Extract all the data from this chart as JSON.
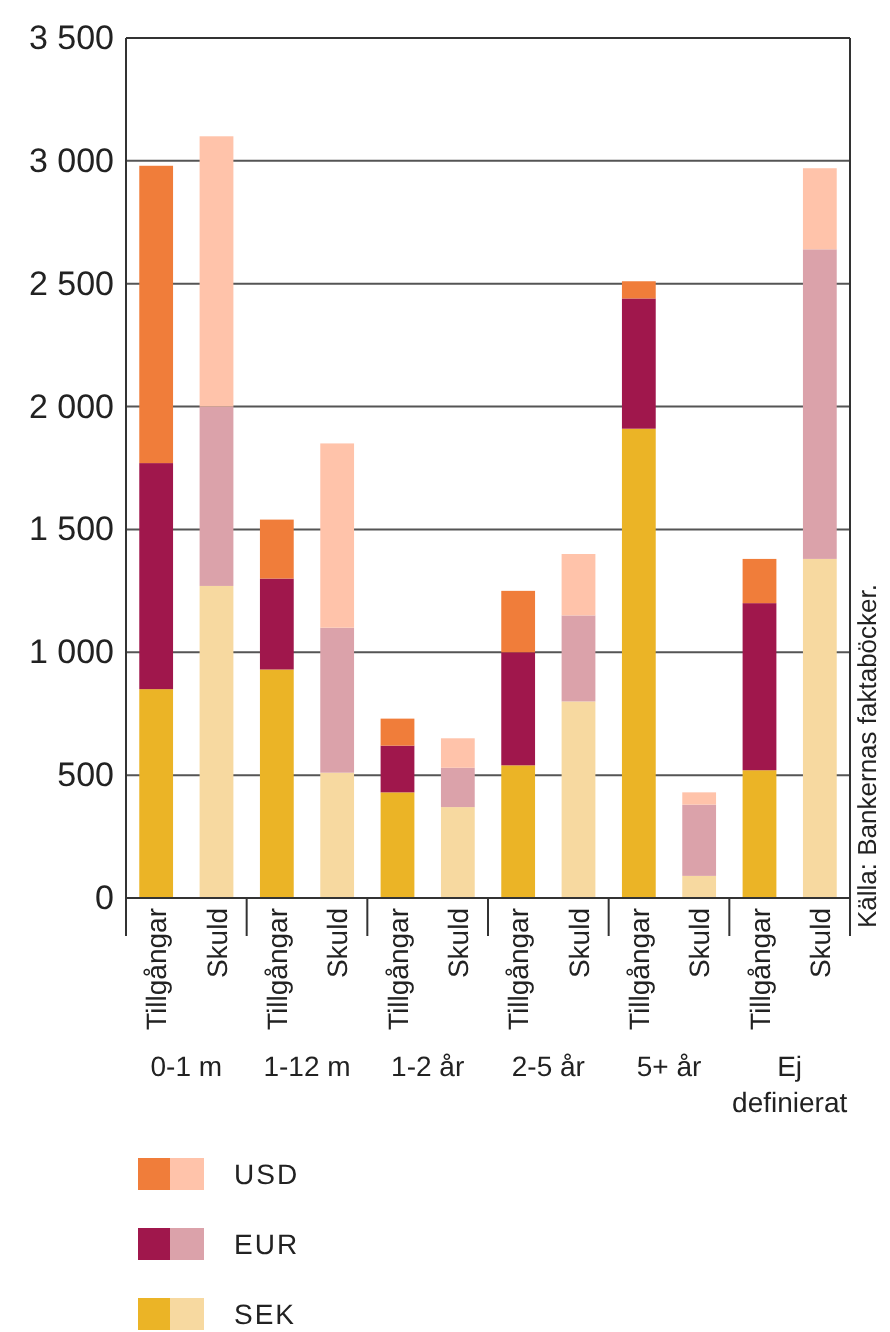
{
  "chart_data": {
    "type": "bar",
    "stacked": true,
    "categories": [
      "Tillgångar",
      "Skuld",
      "Tillgångar",
      "Skuld",
      "Tillgångar",
      "Skuld",
      "Tillgångar",
      "Skuld",
      "Tillgångar",
      "Skuld",
      "Tillgångar",
      "Skuld"
    ],
    "series": [
      {
        "name": "SEK",
        "colors": [
          "#ebb426",
          "#f7d9a0",
          "#ebb426",
          "#f7d9a0",
          "#ebb426",
          "#f7d9a0",
          "#ebb426",
          "#f7d9a0",
          "#ebb426",
          "#f7d9a0",
          "#ebb426",
          "#f7d9a0"
        ],
        "values": [
          850,
          1270,
          930,
          510,
          430,
          370,
          540,
          800,
          1910,
          90,
          520,
          1380
        ]
      },
      {
        "name": "EUR",
        "colors": [
          "#a0174c",
          "#dba2aa",
          "#a0174c",
          "#dba2aa",
          "#a0174c",
          "#dba2aa",
          "#a0174c",
          "#dba2aa",
          "#a0174c",
          "#dba2aa",
          "#a0174c",
          "#dba2aa"
        ],
        "values": [
          920,
          730,
          370,
          590,
          190,
          160,
          460,
          350,
          530,
          290,
          680,
          1260
        ]
      },
      {
        "name": "USD",
        "colors": [
          "#f07d3a",
          "#ffc3aa",
          "#f07d3a",
          "#ffc3aa",
          "#f07d3a",
          "#ffc3aa",
          "#f07d3a",
          "#ffc3aa",
          "#f07d3a",
          "#ffc3aa",
          "#f07d3a",
          "#ffc3aa"
        ],
        "values": [
          1210,
          1100,
          240,
          750,
          110,
          120,
          250,
          250,
          70,
          50,
          180,
          330
        ]
      }
    ],
    "ylim": [
      0,
      3500
    ],
    "yticks": [
      0,
      500,
      {
        "value": 1000,
        "label": "1 000"
      },
      {
        "value": 1500,
        "label": "1 500"
      },
      {
        "value": 2000,
        "label": "2 000"
      },
      {
        "value": 2500,
        "label": "2 500"
      },
      {
        "value": 3000,
        "label": "3 000"
      },
      {
        "value": 3500,
        "label": "3 500"
      }
    ],
    "grid": "y",
    "legend": "bottom",
    "annotations": [
      "0-1 m",
      "1-12 m",
      "1-2 år",
      "2-5 år",
      "5+ år",
      "Ej definierat",
      "Källa: Bankernas faktaböcker."
    ]
  }
}
